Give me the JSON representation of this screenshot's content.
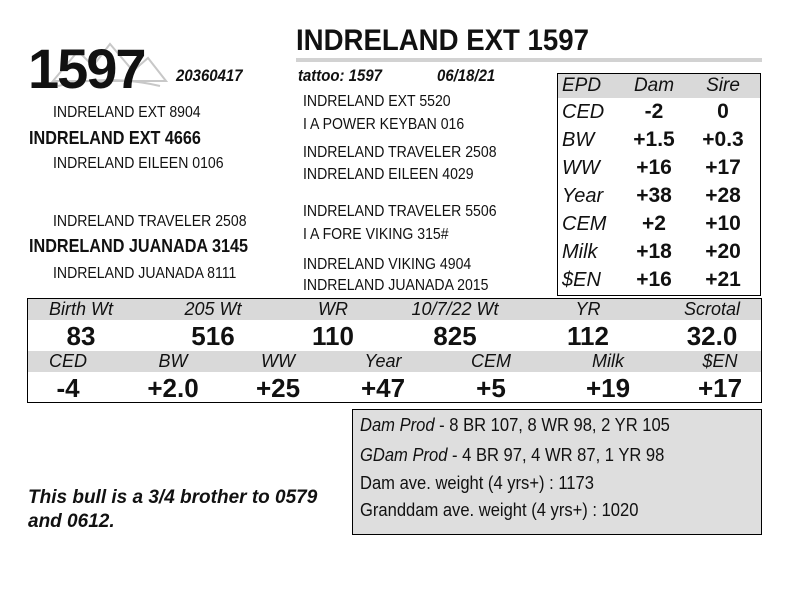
{
  "header": {
    "lot_number": "1597",
    "title": "INDRELAND EXT 1597",
    "registration": "20360417",
    "tattoo": "tattoo: 1597",
    "birth_date": "06/18/21"
  },
  "pedigree": {
    "sire": "INDRELAND EXT 4666",
    "sire_sire": "INDRELAND EXT 8904",
    "sire_dam": "INDRELAND EILEEN 0106",
    "dam": "INDRELAND JUANADA 3145",
    "dam_sire": "INDRELAND TRAVELER 2508",
    "dam_dam": "INDRELAND JUANADA 8111",
    "ss_sire": "INDRELAND EXT 5520",
    "ss_dam": "I A POWER KEYBAN 016",
    "sd_sire": "INDRELAND TRAVELER 2508",
    "sd_dam": "INDRELAND EILEEN 4029",
    "ds_sire": "INDRELAND TRAVELER 5506",
    "ds_dam": "I A FORE VIKING 315#",
    "dd_sire": "INDRELAND VIKING 4904",
    "dd_dam": "INDRELAND JUANADA 2015"
  },
  "epd_table": {
    "headers": [
      "EPD",
      "Dam",
      "Sire"
    ],
    "rows": [
      {
        "trait": "CED",
        "dam": "-2",
        "sire": "0"
      },
      {
        "trait": "BW",
        "dam": "+1.5",
        "sire": "+0.3"
      },
      {
        "trait": "WW",
        "dam": "+16",
        "sire": "+17"
      },
      {
        "trait": "Year",
        "dam": "+38",
        "sire": "+28"
      },
      {
        "trait": "CEM",
        "dam": "+2",
        "sire": "+10"
      },
      {
        "trait": "Milk",
        "dam": "+18",
        "sire": "+20"
      },
      {
        "trait": "$EN",
        "dam": "+16",
        "sire": "+21"
      }
    ]
  },
  "performance": {
    "labels": [
      "Birth Wt",
      "205 Wt",
      "WR",
      "10/7/22 Wt",
      "YR",
      "Scrotal"
    ],
    "values": [
      "83",
      "516",
      "110",
      "825",
      "112",
      "32.0"
    ]
  },
  "bull_epd": {
    "labels": [
      "CED",
      "BW",
      "WW",
      "Year",
      "CEM",
      "Milk",
      "$EN"
    ],
    "values": [
      "-4",
      "+2.0",
      "+25",
      "+47",
      "+5",
      "+19",
      "+17"
    ]
  },
  "production": {
    "dam_prod_label": "Dam Prod",
    "dam_prod": " - 8 BR 107, 8 WR 98, 2 YR 105",
    "gdam_prod_label": "GDam Prod",
    "gdam_prod": " - 4 BR 97, 4 WR 87, 1 YR 98",
    "dam_ave": "Dam ave. weight (4 yrs+) : 1173",
    "granddam_ave": "Granddam ave. weight (4 yrs+) : 1020"
  },
  "note": "This bull is a 3/4 brother to 0579 and 0612.",
  "colors": {
    "band": "#d9d9d9",
    "prod_box": "#dedede",
    "rule": "#d2d2d2"
  }
}
